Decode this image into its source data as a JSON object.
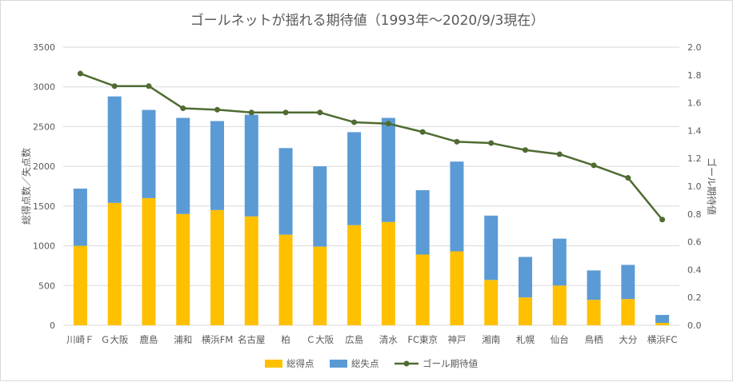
{
  "chart_data": {
    "type": "bar",
    "title": "ゴールネットが揺れる期待値（1993年～2020/9/3現在）",
    "ylabel": "総得点数／失点数",
    "y2label": "ゴール期待値",
    "ylim": [
      0,
      3500
    ],
    "y2lim": [
      0,
      2.0
    ],
    "yticks": [
      "0",
      "500",
      "1000",
      "1500",
      "2000",
      "2500",
      "3000",
      "3500"
    ],
    "y2ticks": [
      "0.0",
      "0.2",
      "0.4",
      "0.6",
      "0.8",
      "1.0",
      "1.2",
      "1.4",
      "1.6",
      "1.8",
      "2.0"
    ],
    "stacked": true,
    "grid": true,
    "legend_position": "bottom",
    "categories": [
      "川崎Ｆ",
      "Ｇ大阪",
      "鹿島",
      "浦和",
      "横浜FM",
      "名古屋",
      "柏",
      "Ｃ大阪",
      "広島",
      "清水",
      "FC東京",
      "神戸",
      "湘南",
      "札幌",
      "仙台",
      "鳥栖",
      "大分",
      "横浜FC"
    ],
    "series": [
      {
        "name": "総得点",
        "type": "bar",
        "color": "#ffc000",
        "values": [
          1000,
          1540,
          1600,
          1400,
          1450,
          1370,
          1140,
          990,
          1260,
          1300,
          890,
          930,
          570,
          350,
          500,
          320,
          330,
          30
        ]
      },
      {
        "name": "総失点",
        "type": "bar",
        "color": "#5b9bd5",
        "values": [
          720,
          1340,
          1110,
          1210,
          1120,
          1280,
          1090,
          1010,
          1170,
          1310,
          810,
          1130,
          810,
          510,
          590,
          370,
          430,
          100
        ]
      },
      {
        "name": "ゴール期待値",
        "type": "line",
        "axis": "right",
        "color": "#4f6b32",
        "values": [
          1.81,
          1.72,
          1.72,
          1.56,
          1.55,
          1.53,
          1.53,
          1.53,
          1.46,
          1.45,
          1.39,
          1.32,
          1.31,
          1.26,
          1.23,
          1.15,
          1.06,
          0.76
        ]
      }
    ]
  }
}
